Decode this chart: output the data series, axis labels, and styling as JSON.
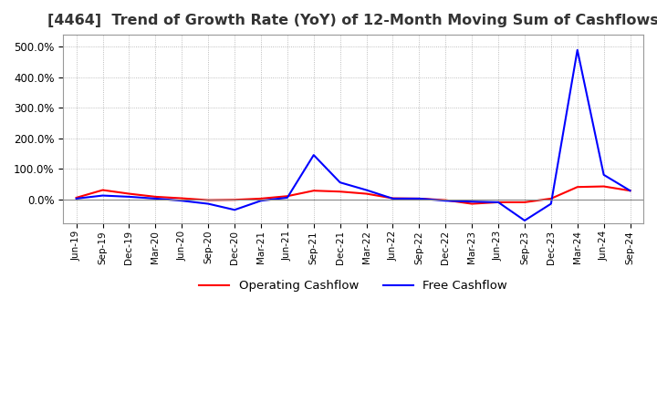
{
  "title": "[4464]  Trend of Growth Rate (YoY) of 12-Month Moving Sum of Cashflows",
  "title_fontsize": 11.5,
  "background_color": "#ffffff",
  "grid_color": "#aaaaaa",
  "legend_entries": [
    "Operating Cashflow",
    "Free Cashflow"
  ],
  "line_colors": [
    "#ff0000",
    "#0000ff"
  ],
  "x_labels": [
    "Jun-19",
    "Sep-19",
    "Dec-19",
    "Mar-20",
    "Jun-20",
    "Sep-20",
    "Dec-20",
    "Mar-21",
    "Jun-21",
    "Sep-21",
    "Dec-21",
    "Mar-22",
    "Jun-22",
    "Sep-22",
    "Dec-22",
    "Mar-23",
    "Jun-23",
    "Sep-23",
    "Dec-23",
    "Mar-24",
    "Jun-24",
    "Sep-24"
  ],
  "operating_cashflow": [
    5.0,
    30.0,
    18.0,
    8.0,
    3.0,
    -3.0,
    -2.0,
    2.0,
    10.0,
    28.0,
    25.0,
    18.0,
    3.0,
    2.0,
    -3.0,
    -15.0,
    -10.0,
    -10.0,
    2.0,
    40.0,
    42.0,
    28.0
  ],
  "free_cashflow": [
    2.0,
    12.0,
    8.0,
    2.0,
    -5.0,
    -15.0,
    -35.0,
    -5.0,
    5.0,
    145.0,
    55.0,
    30.0,
    2.0,
    2.0,
    -5.0,
    -8.0,
    -10.0,
    -70.0,
    -15.0,
    490.0,
    80.0,
    28.0
  ],
  "ylim": [
    -80.0,
    540.0
  ],
  "yticks": [
    0.0,
    100.0,
    200.0,
    300.0,
    400.0,
    500.0
  ]
}
